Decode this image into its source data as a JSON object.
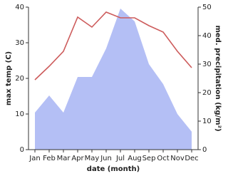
{
  "chart_data": {
    "type": "line-area",
    "categories": [
      "Jan",
      "Feb",
      "Mar",
      "Apr",
      "May",
      "Jun",
      "Jul",
      "Aug",
      "Sep",
      "Oct",
      "Nov",
      "Dec"
    ],
    "x_label": "date (month)",
    "y_label": "max temp (C)",
    "y2_label": "med. precipitation (kg/m²)",
    "ylim": [
      0,
      40
    ],
    "yticks": [
      0,
      10,
      20,
      30,
      40
    ],
    "y2lim": [
      0,
      50
    ],
    "y2ticks": [
      0,
      10,
      20,
      30,
      40,
      50
    ],
    "series": [
      {
        "name": "max temp",
        "color": "#cd5c5c",
        "axis": "y",
        "values": [
          19.6,
          23.4,
          27.6,
          37.2,
          34.4,
          38.6,
          37,
          37,
          34.8,
          33,
          27.6,
          23
        ]
      },
      {
        "name": "med. precipitation",
        "color": "#b4bff5",
        "axis": "y2",
        "values": [
          13,
          19,
          13,
          25.5,
          25.5,
          35.5,
          49.5,
          45,
          30,
          23,
          12.5,
          6.3
        ]
      }
    ]
  }
}
